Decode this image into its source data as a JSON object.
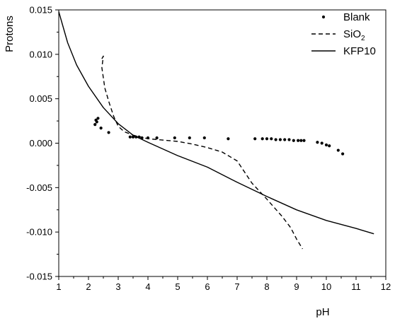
{
  "chart_data": {
    "type": "scatter",
    "title": "",
    "xlabel": "pH",
    "ylabel": "Protons",
    "xlim": [
      1,
      12
    ],
    "ylim": [
      -0.015,
      0.015
    ],
    "xticks": [
      "1",
      "2",
      "3",
      "4",
      "5",
      "6",
      "7",
      "8",
      "9",
      "10",
      "11",
      "12"
    ],
    "yticks": [
      "0.015",
      "0.010",
      "0.005",
      "0.000",
      "-0.005",
      "-0.010",
      "-0.015"
    ],
    "legend_position": "top-right",
    "series": [
      {
        "name": "Blank",
        "legend_main": "Blank",
        "legend_sub": "",
        "style": "points",
        "points": [
          [
            2.22,
            0.0021
          ],
          [
            2.25,
            0.0026
          ],
          [
            2.28,
            0.0024
          ],
          [
            2.32,
            0.0028
          ],
          [
            2.42,
            0.0017
          ],
          [
            2.68,
            0.0012
          ],
          [
            3.4,
            0.0007
          ],
          [
            3.5,
            0.0007
          ],
          [
            3.6,
            0.0007
          ],
          [
            3.7,
            0.0007
          ],
          [
            3.8,
            0.0006
          ],
          [
            4.0,
            0.0006
          ],
          [
            4.3,
            0.0006
          ],
          [
            4.9,
            0.0006
          ],
          [
            5.4,
            0.0006
          ],
          [
            5.9,
            0.0006
          ],
          [
            6.7,
            0.0005
          ],
          [
            7.6,
            0.0005
          ],
          [
            7.85,
            0.0005
          ],
          [
            8.0,
            0.0005
          ],
          [
            8.15,
            0.0005
          ],
          [
            8.3,
            0.0004
          ],
          [
            8.45,
            0.0004
          ],
          [
            8.6,
            0.0004
          ],
          [
            8.75,
            0.0004
          ],
          [
            8.9,
            0.0003
          ],
          [
            9.05,
            0.0003
          ],
          [
            9.15,
            0.0003
          ],
          [
            9.25,
            0.0003
          ],
          [
            9.7,
            0.0001
          ],
          [
            9.85,
            0.0
          ],
          [
            10.0,
            -0.0002
          ],
          [
            10.1,
            -0.0003
          ],
          [
            10.4,
            -0.0008
          ],
          [
            10.55,
            -0.0012
          ]
        ]
      },
      {
        "name": "SiO2",
        "legend_main": "SiO",
        "legend_sub": "2",
        "style": "dashed",
        "points": [
          [
            2.45,
            0.0095
          ],
          [
            2.5,
            0.0098
          ],
          [
            2.45,
            0.0085
          ],
          [
            2.55,
            0.0062
          ],
          [
            2.7,
            0.0045
          ],
          [
            2.85,
            0.003
          ],
          [
            3.0,
            0.0019
          ],
          [
            3.2,
            0.0013
          ],
          [
            3.5,
            0.0009
          ],
          [
            4.0,
            0.0005
          ],
          [
            5.0,
            0.0002
          ],
          [
            5.5,
            -0.0001
          ],
          [
            6.0,
            -0.0005
          ],
          [
            6.5,
            -0.001
          ],
          [
            7.0,
            -0.002
          ],
          [
            7.5,
            -0.0045
          ],
          [
            8.0,
            -0.0063
          ],
          [
            8.5,
            -0.0082
          ],
          [
            8.8,
            -0.0095
          ],
          [
            9.0,
            -0.0108
          ],
          [
            9.2,
            -0.0119
          ]
        ]
      },
      {
        "name": "KFP10",
        "legend_main": "KFP10",
        "legend_sub": "",
        "style": "solid",
        "points": [
          [
            1.0,
            0.0148
          ],
          [
            1.3,
            0.0113
          ],
          [
            1.6,
            0.0088
          ],
          [
            2.0,
            0.0064
          ],
          [
            2.5,
            0.004
          ],
          [
            3.0,
            0.0022
          ],
          [
            3.5,
            0.0009
          ],
          [
            4.0,
            0.0001
          ],
          [
            5.0,
            -0.0014
          ],
          [
            6.0,
            -0.0027
          ],
          [
            7.0,
            -0.0044
          ],
          [
            8.0,
            -0.006
          ],
          [
            9.0,
            -0.0075
          ],
          [
            10.0,
            -0.0087
          ],
          [
            11.0,
            -0.0096
          ],
          [
            11.6,
            -0.0102
          ]
        ]
      }
    ]
  }
}
